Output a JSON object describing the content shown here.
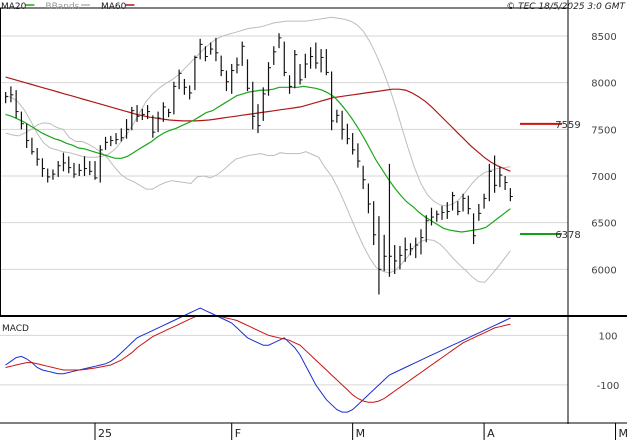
{
  "header": {
    "legend": [
      {
        "label": "MA20",
        "color": "#1aa51a"
      },
      {
        "label": "BBands",
        "color": "#b4b4b4"
      },
      {
        "label": "MA60",
        "color": "#b01818"
      }
    ],
    "copyright": "© TEC 18/5/2025 3:0 GMT"
  },
  "chart_data": [
    {
      "type": "line",
      "title": "",
      "ylim": [
        5500,
        8800
      ],
      "y_ticks": [
        6000,
        6500,
        7000,
        7500,
        8000,
        8500
      ],
      "x_labels": [
        "25",
        "F",
        "M",
        "A",
        "M"
      ],
      "x_label_idx": [
        17,
        43,
        66,
        91,
        116
      ],
      "grid": true,
      "annotations": [
        {
          "label": "7559",
          "value": 7559,
          "color": "#c81414"
        },
        {
          "label": "6378",
          "value": 6378,
          "color": "#14a014"
        }
      ],
      "price_bars": [
        [
          7900,
          7780,
          7850
        ],
        [
          7960,
          7790,
          7870
        ],
        [
          7920,
          7620,
          7690
        ],
        [
          7690,
          7500,
          7560
        ],
        [
          7560,
          7300,
          7380
        ],
        [
          7410,
          7230,
          7260
        ],
        [
          7300,
          7110,
          7180
        ],
        [
          7190,
          6990,
          7080
        ],
        [
          7080,
          6930,
          6990
        ],
        [
          7070,
          6960,
          7020
        ],
        [
          7160,
          6990,
          7110
        ],
        [
          7250,
          7050,
          7140
        ],
        [
          7210,
          7030,
          7090
        ],
        [
          7140,
          6980,
          7020
        ],
        [
          7130,
          7000,
          7060
        ],
        [
          7210,
          7000,
          7080
        ],
        [
          7160,
          7010,
          7050
        ],
        [
          7160,
          6960,
          6980
        ],
        [
          7330,
          6930,
          7280
        ],
        [
          7420,
          7280,
          7360
        ],
        [
          7430,
          7320,
          7380
        ],
        [
          7460,
          7340,
          7390
        ],
        [
          7510,
          7370,
          7410
        ],
        [
          7610,
          7400,
          7500
        ],
        [
          7740,
          7490,
          7700
        ],
        [
          7760,
          7580,
          7640
        ],
        [
          7720,
          7600,
          7660
        ],
        [
          7760,
          7610,
          7690
        ],
        [
          7650,
          7410,
          7470
        ],
        [
          7690,
          7470,
          7620
        ],
        [
          7790,
          7580,
          7740
        ],
        [
          7720,
          7630,
          7680
        ],
        [
          8010,
          7660,
          7960
        ],
        [
          8140,
          7930,
          8100
        ],
        [
          8040,
          7870,
          7950
        ],
        [
          7970,
          7820,
          7890
        ],
        [
          8290,
          7920,
          8270
        ],
        [
          8470,
          8250,
          8410
        ],
        [
          8390,
          8230,
          8280
        ],
        [
          8430,
          8300,
          8360
        ],
        [
          8480,
          8230,
          8320
        ],
        [
          8290,
          8070,
          8130
        ],
        [
          8130,
          7910,
          8010
        ],
        [
          8200,
          7880,
          8130
        ],
        [
          8270,
          8100,
          8190
        ],
        [
          8440,
          8180,
          8390
        ],
        [
          8250,
          7910,
          7940
        ],
        [
          8010,
          7500,
          7640
        ],
        [
          7770,
          7460,
          7540
        ],
        [
          7950,
          7590,
          7880
        ],
        [
          8220,
          7860,
          8160
        ],
        [
          8390,
          8190,
          8330
        ],
        [
          8530,
          8370,
          8480
        ],
        [
          8440,
          8070,
          8110
        ],
        [
          8080,
          7880,
          7960
        ],
        [
          8350,
          7940,
          8300
        ],
        [
          8200,
          7980,
          8030
        ],
        [
          8310,
          8050,
          8200
        ],
        [
          8380,
          8150,
          8280
        ],
        [
          8430,
          8150,
          8210
        ],
        [
          8360,
          8110,
          8270
        ],
        [
          8360,
          8080,
          8110
        ],
        [
          8120,
          7490,
          7590
        ],
        [
          7710,
          7570,
          7650
        ],
        [
          7700,
          7390,
          7500
        ],
        [
          7560,
          7340,
          7400
        ],
        [
          7460,
          7230,
          7280
        ],
        [
          7350,
          7090,
          7160
        ],
        [
          7110,
          6860,
          6960
        ],
        [
          6920,
          6600,
          6700
        ],
        [
          6730,
          6260,
          6370
        ],
        [
          6570,
          5730,
          6000
        ],
        [
          6370,
          5980,
          6140
        ],
        [
          7130,
          5920,
          6140
        ],
        [
          6260,
          5950,
          6090
        ],
        [
          6250,
          6000,
          6150
        ],
        [
          6340,
          6080,
          6210
        ],
        [
          6280,
          6150,
          6220
        ],
        [
          6340,
          6120,
          6260
        ],
        [
          6430,
          6160,
          6340
        ],
        [
          6580,
          6290,
          6520
        ],
        [
          6660,
          6470,
          6560
        ],
        [
          6630,
          6510,
          6590
        ],
        [
          6680,
          6530,
          6610
        ],
        [
          6720,
          6540,
          6620
        ],
        [
          6830,
          6630,
          6790
        ],
        [
          6730,
          6580,
          6620
        ],
        [
          6810,
          6620,
          6760
        ],
        [
          6790,
          6590,
          6650
        ],
        [
          6600,
          6270,
          6360
        ],
        [
          6700,
          6520,
          6600
        ],
        [
          6810,
          6650,
          6760
        ],
        [
          7130,
          6730,
          7050
        ],
        [
          7220,
          6820,
          6900
        ],
        [
          7100,
          6880,
          7010
        ],
        [
          7000,
          6850,
          6930
        ],
        [
          6870,
          6730,
          6780
        ]
      ],
      "ma20": [
        7660,
        7640,
        7610,
        7580,
        7540,
        7500,
        7460,
        7430,
        7400,
        7380,
        7350,
        7330,
        7300,
        7290,
        7270,
        7250,
        7230,
        7210,
        7190,
        7190,
        7210,
        7250,
        7290,
        7330,
        7370,
        7420,
        7460,
        7490,
        7510,
        7540,
        7570,
        7600,
        7640,
        7680,
        7700,
        7740,
        7780,
        7820,
        7860,
        7880,
        7900,
        7910,
        7920,
        7920,
        7930,
        7950,
        7950,
        7950,
        7950,
        7960,
        7950,
        7940,
        7920,
        7890,
        7850,
        7780,
        7700,
        7610,
        7510,
        7400,
        7280,
        7160,
        7060,
        6960,
        6870,
        6790,
        6720,
        6670,
        6610,
        6560,
        6520,
        6480,
        6440,
        6420,
        6410,
        6400,
        6410,
        6420,
        6430,
        6450,
        6500,
        6550,
        6600,
        6650
      ],
      "ma20_start": 0,
      "ma60": [
        8060,
        8040,
        8020,
        8000,
        7980,
        7960,
        7940,
        7920,
        7900,
        7880,
        7860,
        7840,
        7820,
        7800,
        7780,
        7760,
        7740,
        7720,
        7700,
        7680,
        7660,
        7645,
        7630,
        7620,
        7610,
        7600,
        7595,
        7590,
        7590,
        7590,
        7595,
        7600,
        7610,
        7620,
        7630,
        7640,
        7650,
        7660,
        7670,
        7680,
        7690,
        7700,
        7710,
        7720,
        7730,
        7740,
        7760,
        7780,
        7800,
        7820,
        7840,
        7850,
        7860,
        7870,
        7880,
        7890,
        7900,
        7910,
        7920,
        7930,
        7930,
        7920,
        7890,
        7850,
        7800,
        7740,
        7670,
        7600,
        7530,
        7460,
        7390,
        7320,
        7260,
        7200,
        7150,
        7110,
        7080,
        7050
      ],
      "ma60_start": 0,
      "bb_upper": [
        7860,
        7840,
        7790,
        7700,
        7580,
        7450,
        7350,
        7300,
        7280,
        7260,
        7250,
        7230,
        7210,
        7200,
        7200,
        7210,
        7230,
        7280,
        7360,
        7450,
        7560,
        7680,
        7800,
        7880,
        7940,
        7990,
        8030,
        8080,
        8150,
        8220,
        8290,
        8360,
        8420,
        8470,
        8500,
        8520,
        8540,
        8560,
        8580,
        8590,
        8600,
        8620,
        8640,
        8650,
        8660,
        8660,
        8660,
        8660,
        8670,
        8680,
        8690,
        8700,
        8690,
        8680,
        8660,
        8620,
        8550,
        8440,
        8300,
        8140,
        7960,
        7750,
        7520,
        7300,
        7090,
        6920,
        6800,
        6730,
        6690,
        6680,
        6700,
        6750,
        6830,
        6920,
        6990,
        7040,
        7060,
        7080,
        7090,
        7100
      ]
    },
    {
      "type": "line",
      "title": "MACD",
      "ylim": [
        -250,
        170
      ],
      "y_ticks": [
        100,
        -100
      ],
      "macd": [
        -20,
        -5,
        10,
        15,
        5,
        -10,
        -30,
        -40,
        -45,
        -50,
        -55,
        -55,
        -50,
        -45,
        -40,
        -35,
        -30,
        -25,
        -20,
        -15,
        -5,
        10,
        30,
        50,
        70,
        90,
        100,
        110,
        120,
        130,
        140,
        150,
        160,
        170,
        180,
        190,
        200,
        210,
        200,
        190,
        180,
        170,
        160,
        150,
        130,
        110,
        90,
        80,
        70,
        60,
        60,
        70,
        80,
        90,
        70,
        50,
        20,
        -20,
        -60,
        -100,
        -130,
        -160,
        -180,
        -200,
        -210,
        -210,
        -200,
        -180,
        -160,
        -140,
        -120,
        -100,
        -80,
        -60,
        -50,
        -40,
        -30,
        -20,
        -10,
        0,
        10,
        20,
        30,
        40,
        50,
        60,
        70,
        80,
        90,
        100,
        110,
        120,
        130,
        140,
        150,
        160,
        170
      ],
      "signal": [
        -30,
        -25,
        -20,
        -15,
        -10,
        -10,
        -15,
        -20,
        -25,
        -30,
        -35,
        -40,
        -40,
        -40,
        -40,
        -38,
        -35,
        -32,
        -28,
        -24,
        -20,
        -10,
        0,
        15,
        30,
        50,
        65,
        80,
        95,
        105,
        115,
        125,
        135,
        145,
        155,
        165,
        175,
        180,
        180,
        180,
        178,
        175,
        170,
        165,
        160,
        150,
        140,
        130,
        120,
        110,
        100,
        95,
        90,
        85,
        80,
        70,
        60,
        40,
        20,
        0,
        -20,
        -40,
        -60,
        -80,
        -100,
        -120,
        -140,
        -155,
        -165,
        -170,
        -170,
        -165,
        -155,
        -140,
        -125,
        -110,
        -95,
        -80,
        -65,
        -50,
        -35,
        -20,
        -5,
        10,
        25,
        40,
        55,
        70,
        80,
        90,
        100,
        110,
        120,
        130,
        135,
        140,
        145
      ]
    }
  ]
}
